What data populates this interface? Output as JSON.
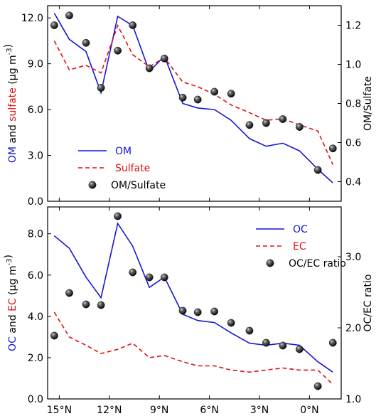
{
  "chart_data": [
    {
      "type": "line",
      "x": [
        15.3,
        14.4,
        13.4,
        12.5,
        11.5,
        10.6,
        9.6,
        8.7,
        7.6,
        6.7,
        5.7,
        4.7,
        3.6,
        2.6,
        1.6,
        0.6,
        -0.5,
        -1.4
      ],
      "xticks": [
        15,
        12,
        9,
        6,
        3,
        0
      ],
      "xtick_labels": [
        "15°N",
        "12°N",
        "9°N",
        "6°N",
        "3°N",
        "0°N"
      ],
      "xlim": [
        15.7,
        -1.9
      ],
      "ylim_left": [
        0,
        12.8
      ],
      "ylim_right": [
        0.3,
        1.3
      ],
      "yticks_left": [
        "0.0",
        "3.0",
        "6.0",
        "9.0",
        "12.0"
      ],
      "yticks_right": [
        "0.4",
        "0.6",
        "0.8",
        "1.0",
        "1.2"
      ],
      "ylabel_left_parts": [
        {
          "text": "OM",
          "color": "#1515d8"
        },
        {
          "text": " and ",
          "color": "#000000"
        },
        {
          "text": "sulfate",
          "color": "#e01010"
        },
        {
          "text": " (μg m",
          "color": "#000000"
        },
        {
          "text": "-3",
          "color": "#000000",
          "sup": true
        },
        {
          "text": ")",
          "color": "#000000"
        }
      ],
      "ylabel_right": "OM/Sulfate",
      "series": [
        {
          "name": "OM",
          "axis": "left",
          "style": "solid",
          "color": "#1515d8",
          "values": [
            12.3,
            10.6,
            9.8,
            7.1,
            12.1,
            11.5,
            8.5,
            9.5,
            6.4,
            6.1,
            6.0,
            5.3,
            4.1,
            3.6,
            3.8,
            3.3,
            2.1,
            1.2
          ]
        },
        {
          "name": "Sulfate",
          "axis": "left",
          "style": "dashed",
          "color": "#e01010",
          "values": [
            10.5,
            8.6,
            8.9,
            8.4,
            11.5,
            9.6,
            8.8,
            9.4,
            7.8,
            7.5,
            7.0,
            6.3,
            5.8,
            5.3,
            5.4,
            5.0,
            4.6,
            2.4
          ]
        },
        {
          "name": "OM/Sulfate",
          "axis": "right",
          "style": "marker",
          "color": "#000000",
          "values": [
            1.2,
            1.25,
            1.11,
            0.88,
            1.07,
            1.2,
            0.98,
            1.03,
            0.83,
            0.82,
            0.86,
            0.85,
            0.69,
            0.7,
            0.72,
            0.68,
            0.46,
            0.57
          ]
        }
      ],
      "legend": {
        "placement": "bottom-left"
      }
    },
    {
      "type": "line",
      "x": [
        15.3,
        14.4,
        13.4,
        12.5,
        11.5,
        10.6,
        9.6,
        8.7,
        7.6,
        6.7,
        5.7,
        4.7,
        3.6,
        2.6,
        1.6,
        0.6,
        -0.5,
        -1.4
      ],
      "xticks": [
        15,
        12,
        9,
        6,
        3,
        0
      ],
      "xtick_labels": [
        "15°N",
        "12°N",
        "9°N",
        "6°N",
        "3°N",
        "0°N"
      ],
      "xlim": [
        15.7,
        -1.9
      ],
      "ylim_left": [
        0,
        9.3
      ],
      "ylim_right": [
        1.0,
        3.7
      ],
      "yticks_left": [
        "0.0",
        "2.0",
        "4.0",
        "6.0",
        "8.0"
      ],
      "yticks_right": [
        "1.0",
        "2.0",
        "3.0"
      ],
      "ylabel_left_parts": [
        {
          "text": "OC",
          "color": "#1515d8"
        },
        {
          "text": " and ",
          "color": "#000000"
        },
        {
          "text": "EC",
          "color": "#e01010"
        },
        {
          "text": " (μg m",
          "color": "#000000"
        },
        {
          "text": "-3",
          "color": "#000000",
          "sup": true
        },
        {
          "text": ")",
          "color": "#000000"
        }
      ],
      "ylabel_right": "OC/EC ratio",
      "series": [
        {
          "name": "OC",
          "axis": "left",
          "style": "solid",
          "color": "#1515d8",
          "values": [
            7.9,
            7.3,
            5.9,
            4.9,
            8.5,
            7.4,
            5.4,
            5.9,
            4.1,
            3.8,
            3.7,
            3.2,
            2.7,
            2.6,
            2.7,
            2.6,
            1.8,
            1.3
          ]
        },
        {
          "name": "EC",
          "axis": "left",
          "style": "dashed",
          "color": "#e01010",
          "values": [
            4.2,
            3.0,
            2.6,
            2.2,
            2.4,
            2.7,
            2.0,
            2.1,
            1.8,
            1.6,
            1.6,
            1.4,
            1.3,
            1.4,
            1.5,
            1.4,
            1.4,
            0.7
          ]
        },
        {
          "name": "OC/EC ratio",
          "axis": "right",
          "style": "marker",
          "color": "#000000",
          "values": [
            1.89,
            2.49,
            2.33,
            2.32,
            3.57,
            2.78,
            2.71,
            2.71,
            2.24,
            2.22,
            2.23,
            2.07,
            1.96,
            1.79,
            1.75,
            1.7,
            1.18,
            1.79
          ]
        }
      ],
      "legend": {
        "placement": "top-right"
      }
    }
  ]
}
